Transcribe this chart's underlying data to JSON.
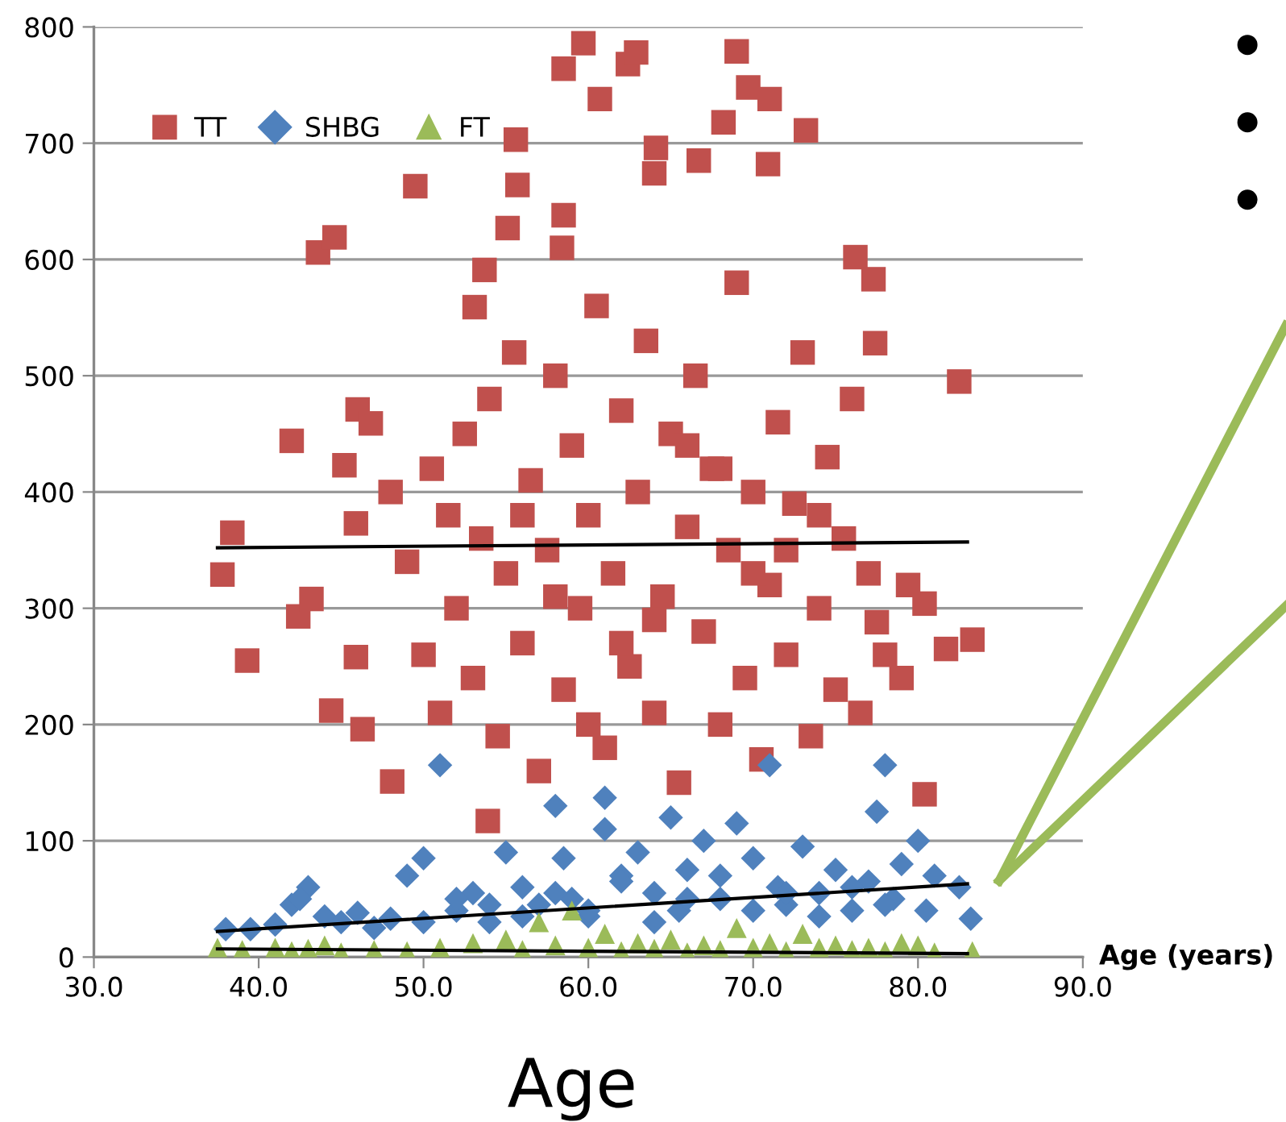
{
  "chart_data": {
    "type": "scatter",
    "xlabel": "Age (years)",
    "annotations": [
      "Age"
    ],
    "xlim": [
      30,
      90
    ],
    "xticks": [
      {
        "value": 30,
        "label": "30.0"
      },
      {
        "value": 40,
        "label": "40.0"
      },
      {
        "value": 50,
        "label": "50.0"
      },
      {
        "value": 60,
        "label": "60.0"
      },
      {
        "value": 70,
        "label": "70.0"
      },
      {
        "value": 80,
        "label": "80.0"
      },
      {
        "value": 90,
        "label": "90.0"
      }
    ],
    "ylim": [
      0,
      800
    ],
    "yticks": [
      0,
      100,
      200,
      300,
      400,
      500,
      600,
      700,
      800
    ],
    "grid": "y",
    "legend": "top left",
    "series": [
      {
        "name": "TT",
        "color": "#c0504d",
        "marker": "square",
        "x": [
          37.8,
          39.3,
          38.4,
          42.0,
          42.4,
          43.2,
          43.6,
          44.6,
          44.4,
          45.2,
          46.0,
          45.9,
          46.3,
          45.9,
          48.1,
          46.8,
          49.5,
          53.9,
          55.6,
          55.7,
          55.1,
          53.1,
          53.7,
          58.5,
          58.4,
          58.5,
          59.7,
          60.7,
          62.4,
          62.9,
          64.1,
          64.0,
          66.7,
          68.2,
          69.0,
          69.7,
          71.0,
          70.9,
          73.2,
          76.2,
          77.3,
          77.4,
          77.5,
          82.5,
          83.3,
          80.4,
          79.4,
          80.4,
          81.7,
          48,
          49,
          50,
          50.5,
          51,
          51.5,
          52,
          52.5,
          53,
          53.5,
          54,
          54.5,
          55,
          55.5,
          56,
          56.5,
          57,
          57.5,
          58,
          58.5,
          59,
          59.5,
          60,
          60.5,
          61,
          61.5,
          62,
          62.5,
          63,
          63.5,
          64,
          64.5,
          65,
          65.5,
          66,
          66.5,
          67,
          67.5,
          68,
          68.5,
          69,
          69.5,
          70,
          70.5,
          71,
          71.5,
          72,
          72.5,
          73,
          73.5,
          74,
          74.5,
          75,
          75.5,
          76,
          76.5,
          77,
          78,
          79,
          56,
          60,
          64,
          68,
          72,
          58,
          62,
          66,
          70,
          74
        ],
        "values": [
          329,
          255,
          365,
          444,
          293,
          308,
          606,
          619,
          212,
          423,
          471,
          373,
          196,
          258,
          151,
          459,
          663,
          117,
          703,
          664,
          627,
          559,
          591,
          638,
          610,
          764,
          786,
          738,
          768,
          778,
          696,
          674,
          685,
          718,
          779,
          748,
          738,
          682,
          711,
          602,
          583,
          528,
          288,
          495,
          273,
          304,
          320,
          140,
          265,
          400,
          340,
          260,
          420,
          210,
          380,
          300,
          450,
          240,
          360,
          480,
          190,
          330,
          520,
          270,
          410,
          160,
          350,
          500,
          230,
          440,
          300,
          380,
          560,
          180,
          330,
          470,
          250,
          400,
          530,
          210,
          310,
          450,
          150,
          370,
          500,
          280,
          420,
          200,
          350,
          580,
          240,
          400,
          170,
          320,
          460,
          260,
          390,
          520,
          190,
          300,
          430,
          230,
          360,
          480,
          210,
          330,
          260,
          240,
          380,
          200,
          290,
          420,
          350,
          310,
          270,
          440,
          330,
          380
        ]
      },
      {
        "name": "SHBG",
        "color": "#4f81bd",
        "marker": "diamond",
        "x": [
          38,
          39.5,
          41,
          42,
          43,
          42.5,
          44,
          45,
          46,
          47,
          48,
          49,
          50,
          51,
          52,
          53,
          54,
          55,
          56,
          57,
          58,
          58.5,
          59,
          60,
          61,
          61,
          62,
          63,
          64,
          65,
          65.5,
          66,
          67,
          68,
          69,
          70,
          71,
          71.5,
          72,
          73,
          74,
          75,
          76,
          77,
          77.5,
          78,
          78.5,
          79,
          80,
          80.5,
          81,
          82.5,
          83.2,
          50,
          52,
          54,
          56,
          58,
          60,
          62,
          64,
          66,
          68,
          70,
          72,
          74,
          76,
          78
        ],
        "values": [
          24,
          24,
          28,
          45,
          60,
          50,
          35,
          30,
          38,
          25,
          33,
          70,
          85,
          165,
          40,
          55,
          30,
          90,
          60,
          45,
          130,
          85,
          50,
          35,
          137,
          110,
          70,
          90,
          55,
          120,
          40,
          75,
          100,
          50,
          115,
          85,
          165,
          60,
          45,
          95,
          55,
          75,
          40,
          65,
          125,
          165,
          50,
          80,
          100,
          40,
          70,
          60,
          33,
          30,
          50,
          45,
          35,
          55,
          40,
          65,
          30,
          50,
          70,
          40,
          55,
          35,
          60,
          45
        ]
      },
      {
        "name": "FT",
        "color": "#9bbb59",
        "marker": "triangle",
        "x": [
          37.5,
          39,
          41,
          42,
          43,
          44,
          45,
          47,
          49,
          51,
          53,
          55,
          56,
          57,
          58,
          59,
          60,
          61,
          62,
          63,
          64,
          65,
          66,
          67,
          68,
          69,
          70,
          71,
          72,
          73,
          74,
          75,
          76,
          77,
          78,
          79,
          80,
          81,
          83.3
        ],
        "values": [
          8,
          6,
          8,
          5,
          7,
          10,
          4,
          6,
          5,
          8,
          12,
          15,
          6,
          30,
          10,
          40,
          8,
          20,
          5,
          12,
          7,
          15,
          4,
          10,
          6,
          25,
          8,
          12,
          5,
          20,
          8,
          10,
          6,
          8,
          5,
          12,
          10,
          4,
          5
        ]
      },
      {
        "type": "line",
        "color": "#000000",
        "x": [
          37.5,
          83
        ],
        "values": [
          352,
          357
        ]
      },
      {
        "type": "line",
        "color": "#000000",
        "x": [
          37.5,
          83
        ],
        "values": [
          22,
          63
        ]
      },
      {
        "type": "line",
        "color": "#000000",
        "x": [
          37.5,
          83
        ],
        "values": [
          7,
          3
        ]
      }
    ]
  }
}
